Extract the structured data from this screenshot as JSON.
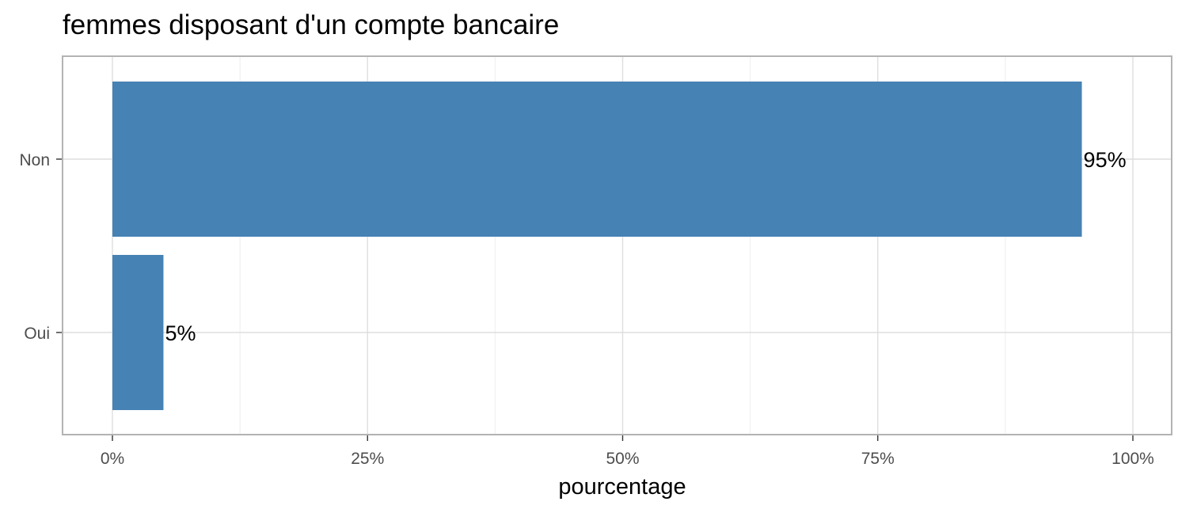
{
  "chart_data": {
    "type": "bar",
    "orientation": "horizontal",
    "title": "femmes disposant d'un compte bancaire",
    "xlabel": "pourcentage",
    "ylabel": "",
    "categories": [
      "Non",
      "Oui"
    ],
    "values": [
      95,
      5
    ],
    "data_labels": [
      "95%",
      "5%"
    ],
    "xlim": [
      0,
      100
    ],
    "x_ticks": [
      0,
      25,
      50,
      75,
      100
    ],
    "x_tick_labels": [
      "0%",
      "25%",
      "50%",
      "75%",
      "100%"
    ],
    "grid": true,
    "legend": "none",
    "bar_color": "#4682b4"
  }
}
